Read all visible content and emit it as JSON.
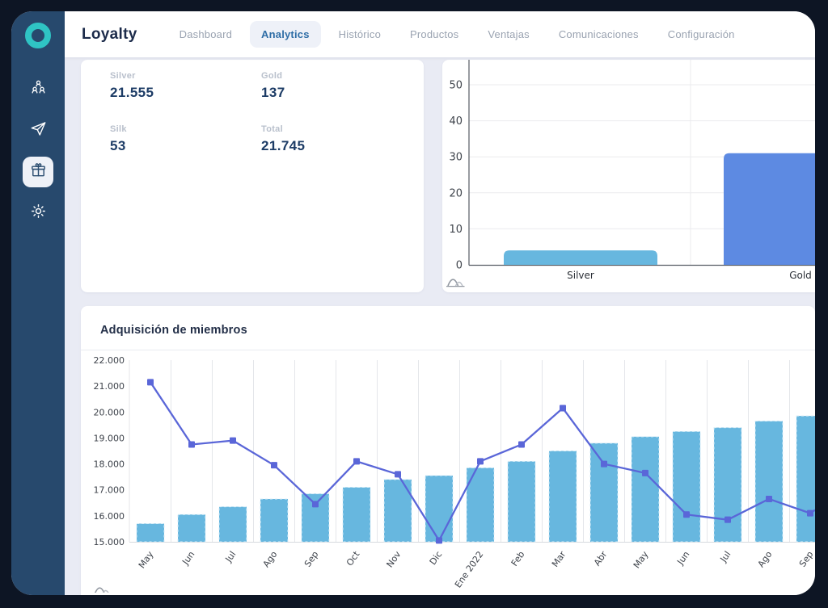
{
  "app": {
    "title": "Loyalty"
  },
  "nav": {
    "items": [
      {
        "label": "Dashboard",
        "active": false
      },
      {
        "label": "Analytics",
        "active": true
      },
      {
        "label": "Histórico",
        "active": false
      },
      {
        "label": "Productos",
        "active": false
      },
      {
        "label": "Ventajas",
        "active": false
      },
      {
        "label": "Comunicaciones",
        "active": false
      },
      {
        "label": "Configuración",
        "active": false
      }
    ]
  },
  "sidebar": {
    "icons": [
      {
        "name": "members-icon",
        "active": false
      },
      {
        "name": "send-icon",
        "active": false
      },
      {
        "name": "gift-icon",
        "active": true
      },
      {
        "name": "settings-icon",
        "active": false
      }
    ]
  },
  "stats": {
    "items": [
      {
        "label": "Silver",
        "value": "21.555"
      },
      {
        "label": "Gold",
        "value": "137"
      },
      {
        "label": "Silk",
        "value": "53"
      },
      {
        "label": "Total",
        "value": "21.745"
      }
    ]
  },
  "colors": {
    "accent_teal": "#2fc4c4",
    "sidebar": "#27496d",
    "frame": "#0d1524",
    "light_bar": "#67b7df",
    "dark_bar": "#5d8ae2",
    "line": "#5a66d8",
    "active_nav": "#2e6da6"
  },
  "chart_data": [
    {
      "type": "bar",
      "title": "",
      "categories": [
        "Silver",
        "Gold"
      ],
      "values": [
        4,
        31
      ],
      "bar_colors": [
        "#67b7df",
        "#5d8ae2"
      ],
      "yticks": [
        0,
        10,
        20,
        30,
        40,
        50
      ],
      "ylim": [
        0,
        57
      ],
      "grid": "horizontal",
      "legend": "none"
    },
    {
      "type": "bar+line",
      "title": "Adquisición de miembros",
      "categories": [
        "May",
        "Jun",
        "Jul",
        "Ago",
        "Sep",
        "Oct",
        "Nov",
        "Dic",
        "Ene 2022",
        "Feb",
        "Mar",
        "Abr",
        "May",
        "Jun",
        "Jul",
        "Ago",
        "Sep"
      ],
      "series": [
        {
          "type": "bar",
          "color": "#67b7df",
          "values": [
            15700,
            16050,
            16350,
            16650,
            16850,
            17100,
            17400,
            17550,
            17850,
            18100,
            18500,
            18800,
            19050,
            19250,
            19400,
            19650,
            19850
          ]
        },
        {
          "type": "line",
          "color": "#5a66d8",
          "marker": "square",
          "values": [
            21150,
            18750,
            18900,
            17950,
            16450,
            18100,
            17600,
            15050,
            18100,
            18750,
            20150,
            18000,
            17650,
            16050,
            15850,
            16650,
            16100
          ]
        }
      ],
      "ylim": [
        15000,
        22000
      ],
      "ytick_values": [
        15000,
        16000,
        17000,
        18000,
        19000,
        20000,
        21000,
        22000
      ],
      "ytick_labels": [
        "15.000",
        "16.000",
        "17.000",
        "18.000",
        "19.000",
        "20.000",
        "21.000",
        "22.000"
      ],
      "grid": "vertical",
      "legend": "none"
    }
  ]
}
